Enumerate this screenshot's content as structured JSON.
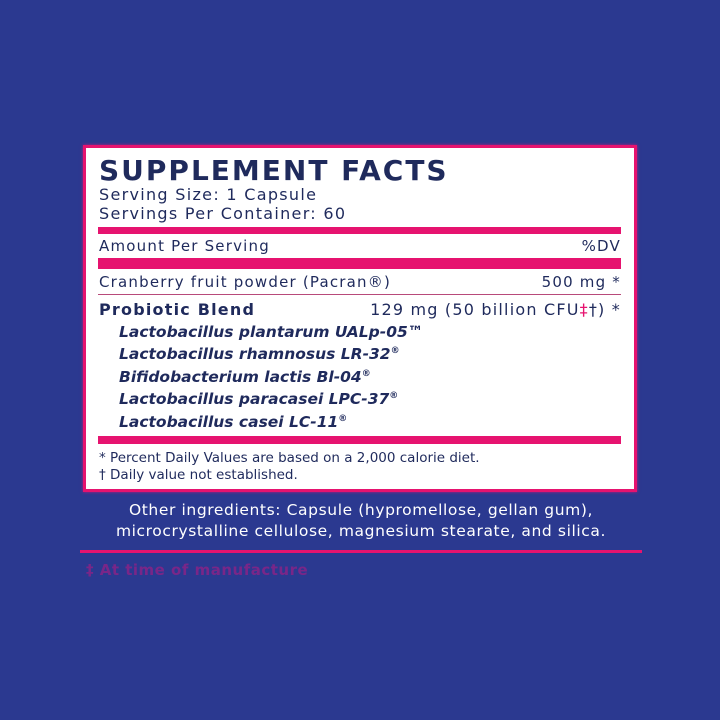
{
  "label": {
    "title": "SUPPLEMENT FACTS",
    "serving_size": "Serving Size: 1 Capsule",
    "servings_per_container": "Servings Per Container: 60",
    "header": {
      "amount": "Amount Per Serving",
      "dv": "%DV"
    },
    "rows": [
      {
        "name": "Cranberry fruit powder (Pacran®)",
        "amount": "500 mg *"
      },
      {
        "name": "Probiotic Blend",
        "amount_prefix": "129 mg (50 billion CFU",
        "amount_mark": "‡",
        "amount_suffix": "†) *"
      }
    ],
    "strains": [
      {
        "name": "Lactobacillus plantarum UALp-05",
        "mark": "™"
      },
      {
        "name": "Lactobacillus rhamnosus LR-32",
        "mark": "®"
      },
      {
        "name": "Bifidobacterium lactis Bl-04",
        "mark": "®"
      },
      {
        "name": "Lactobacillus paracasei LPC-37",
        "mark": "®"
      },
      {
        "name": "Lactobacillus casei LC-11",
        "mark": "®"
      }
    ],
    "footnotes": [
      "* Percent Daily Values are based on a 2,000 calorie diet.",
      "† Daily value not established."
    ]
  },
  "other_ingredients": [
    "Other ingredients: Capsule (hypromellose, gellan gum),",
    "microcrystalline cellulose, magnesium stearate, and silica."
  ],
  "footer_note": "‡ At time of manufacture",
  "colors": {
    "background": "#2b3990",
    "accent": "#e6136f",
    "text": "#1f2a5c"
  }
}
